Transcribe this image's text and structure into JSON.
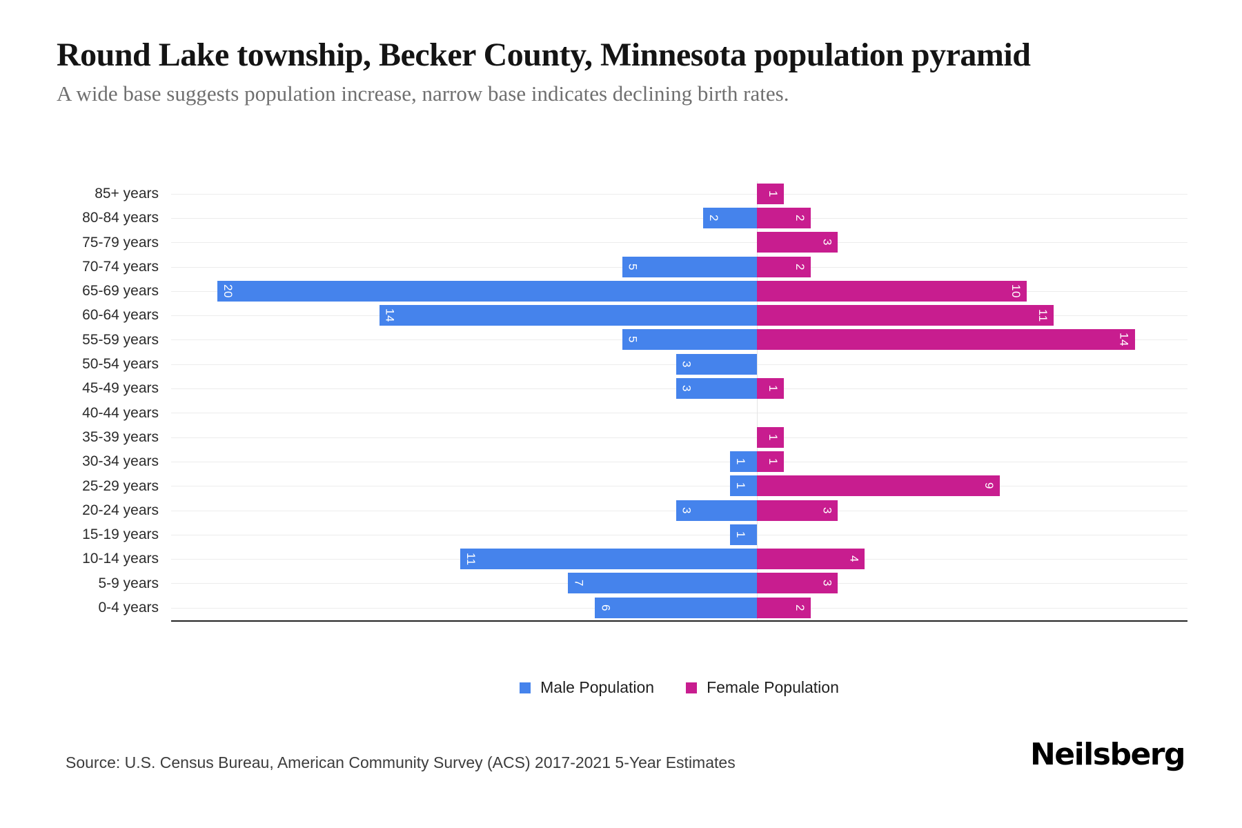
{
  "header": {
    "title": "Round Lake township, Becker County, Minnesota population pyramid",
    "subtitle": "A wide base suggests population increase, narrow base indicates declining birth rates."
  },
  "colors": {
    "male": "#4583EC",
    "female": "#C81D8F",
    "gridline": "#ececec",
    "axis": "#222222"
  },
  "chart_data": {
    "type": "bar",
    "variant": "population-pyramid",
    "orientation": "horizontal",
    "title": "Round Lake township, Becker County, Minnesota population pyramid",
    "subtitle": "A wide base suggests population increase, narrow base indicates declining birth rates.",
    "categories": [
      "85+ years",
      "80-84 years",
      "75-79 years",
      "70-74 years",
      "65-69 years",
      "60-64 years",
      "55-59 years",
      "50-54 years",
      "45-49 years",
      "40-44 years",
      "35-39 years",
      "30-34 years",
      "25-29 years",
      "20-24 years",
      "15-19 years",
      "10-14 years",
      "5-9 years",
      "0-4 years"
    ],
    "series": [
      {
        "name": "Male Population",
        "color": "#4583EC",
        "values": [
          0,
          2,
          0,
          5,
          20,
          14,
          5,
          3,
          3,
          0,
          0,
          1,
          1,
          3,
          1,
          11,
          7,
          6
        ]
      },
      {
        "name": "Female Population",
        "color": "#C81D8F",
        "values": [
          1,
          2,
          3,
          2,
          10,
          11,
          14,
          0,
          1,
          0,
          1,
          1,
          9,
          3,
          0,
          4,
          3,
          2
        ]
      }
    ],
    "value_labels": "inside outer end of each bar, rotated 90deg, white",
    "grid": "horizontal light gridline per category, faint vertical zero line",
    "legend_position": "bottom-center",
    "layout_hints": {
      "zero_pct": 57.64,
      "unit_pct": 2.655,
      "male_axis_max": 21.7,
      "female_axis_max": 15.9
    }
  },
  "legend": {
    "male_label": "Male Population",
    "female_label": "Female Population"
  },
  "footer": {
    "source": "Source: U.S. Census Bureau, American Community Survey (ACS) 2017-2021 5-Year Estimates",
    "brand": "Neilsberg"
  }
}
